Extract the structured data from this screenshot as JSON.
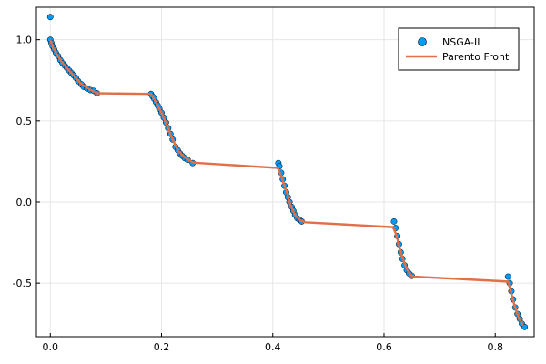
{
  "chart_data": {
    "type": "scatter",
    "title": "",
    "xlabel": "",
    "ylabel": "",
    "xlim": [
      -0.025,
      0.87
    ],
    "ylim": [
      -0.83,
      1.2
    ],
    "xticks": [
      0.0,
      0.2,
      0.4,
      0.6,
      0.8
    ],
    "xtick_labels": [
      "0.0",
      "0.2",
      "0.4",
      "0.6",
      "0.8"
    ],
    "yticks": [
      -0.5,
      0.0,
      0.5,
      1.0
    ],
    "ytick_labels": [
      "-0.5",
      "0.0",
      "0.5",
      "1.0"
    ],
    "grid": true,
    "legend_position": "top-right",
    "series": [
      {
        "name": "NSGA-II",
        "kind": "scatter",
        "color": "#009AFA",
        "points": [
          [
            0.0,
            1.14
          ],
          [
            0.0,
            1.0
          ],
          [
            0.002,
            0.98
          ],
          [
            0.004,
            0.96
          ],
          [
            0.007,
            0.94
          ],
          [
            0.01,
            0.92
          ],
          [
            0.014,
            0.9
          ],
          [
            0.018,
            0.875
          ],
          [
            0.022,
            0.855
          ],
          [
            0.026,
            0.84
          ],
          [
            0.03,
            0.825
          ],
          [
            0.034,
            0.81
          ],
          [
            0.038,
            0.795
          ],
          [
            0.042,
            0.78
          ],
          [
            0.046,
            0.765
          ],
          [
            0.05,
            0.745
          ],
          [
            0.056,
            0.725
          ],
          [
            0.06,
            0.71
          ],
          [
            0.066,
            0.7
          ],
          [
            0.072,
            0.69
          ],
          [
            0.078,
            0.685
          ],
          [
            0.084,
            0.67
          ],
          [
            0.181,
            0.666
          ],
          [
            0.184,
            0.65
          ],
          [
            0.187,
            0.635
          ],
          [
            0.19,
            0.615
          ],
          [
            0.193,
            0.595
          ],
          [
            0.196,
            0.575
          ],
          [
            0.2,
            0.55
          ],
          [
            0.204,
            0.52
          ],
          [
            0.208,
            0.49
          ],
          [
            0.212,
            0.455
          ],
          [
            0.216,
            0.42
          ],
          [
            0.22,
            0.385
          ],
          [
            0.225,
            0.34
          ],
          [
            0.229,
            0.32
          ],
          [
            0.233,
            0.3
          ],
          [
            0.237,
            0.285
          ],
          [
            0.242,
            0.27
          ],
          [
            0.247,
            0.26
          ],
          [
            0.256,
            0.24
          ],
          [
            0.41,
            0.24
          ],
          [
            0.412,
            0.22
          ],
          [
            0.415,
            0.18
          ],
          [
            0.418,
            0.14
          ],
          [
            0.421,
            0.1
          ],
          [
            0.424,
            0.06
          ],
          [
            0.427,
            0.03
          ],
          [
            0.43,
            0.0
          ],
          [
            0.434,
            -0.03
          ],
          [
            0.437,
            -0.055
          ],
          [
            0.44,
            -0.08
          ],
          [
            0.444,
            -0.1
          ],
          [
            0.448,
            -0.11
          ],
          [
            0.452,
            -0.12
          ],
          [
            0.618,
            -0.12
          ],
          [
            0.621,
            -0.16
          ],
          [
            0.624,
            -0.21
          ],
          [
            0.627,
            -0.26
          ],
          [
            0.63,
            -0.31
          ],
          [
            0.633,
            -0.35
          ],
          [
            0.637,
            -0.39
          ],
          [
            0.641,
            -0.42
          ],
          [
            0.645,
            -0.44
          ],
          [
            0.65,
            -0.455
          ],
          [
            0.823,
            -0.46
          ],
          [
            0.826,
            -0.5
          ],
          [
            0.829,
            -0.55
          ],
          [
            0.832,
            -0.6
          ],
          [
            0.836,
            -0.65
          ],
          [
            0.84,
            -0.69
          ],
          [
            0.844,
            -0.72
          ],
          [
            0.848,
            -0.75
          ],
          [
            0.853,
            -0.77
          ]
        ]
      },
      {
        "name": "Parento Front",
        "kind": "line",
        "color": "#E26F46",
        "points": [
          [
            0.0,
            1.0
          ],
          [
            0.005,
            0.95
          ],
          [
            0.012,
            0.91
          ],
          [
            0.02,
            0.865
          ],
          [
            0.03,
            0.825
          ],
          [
            0.042,
            0.78
          ],
          [
            0.055,
            0.73
          ],
          [
            0.07,
            0.695
          ],
          [
            0.084,
            0.67
          ],
          [
            0.181,
            0.666
          ],
          [
            0.19,
            0.615
          ],
          [
            0.2,
            0.55
          ],
          [
            0.21,
            0.47
          ],
          [
            0.22,
            0.385
          ],
          [
            0.23,
            0.315
          ],
          [
            0.245,
            0.265
          ],
          [
            0.258,
            0.242
          ],
          [
            0.409,
            0.21
          ],
          [
            0.415,
            0.16
          ],
          [
            0.42,
            0.11
          ],
          [
            0.426,
            0.05
          ],
          [
            0.432,
            -0.02
          ],
          [
            0.44,
            -0.08
          ],
          [
            0.45,
            -0.115
          ],
          [
            0.458,
            -0.125
          ],
          [
            0.616,
            -0.155
          ],
          [
            0.622,
            -0.2
          ],
          [
            0.628,
            -0.28
          ],
          [
            0.634,
            -0.35
          ],
          [
            0.642,
            -0.42
          ],
          [
            0.65,
            -0.455
          ],
          [
            0.655,
            -0.46
          ],
          [
            0.823,
            -0.49
          ],
          [
            0.828,
            -0.55
          ],
          [
            0.834,
            -0.63
          ],
          [
            0.842,
            -0.71
          ],
          [
            0.85,
            -0.76
          ]
        ]
      }
    ]
  }
}
